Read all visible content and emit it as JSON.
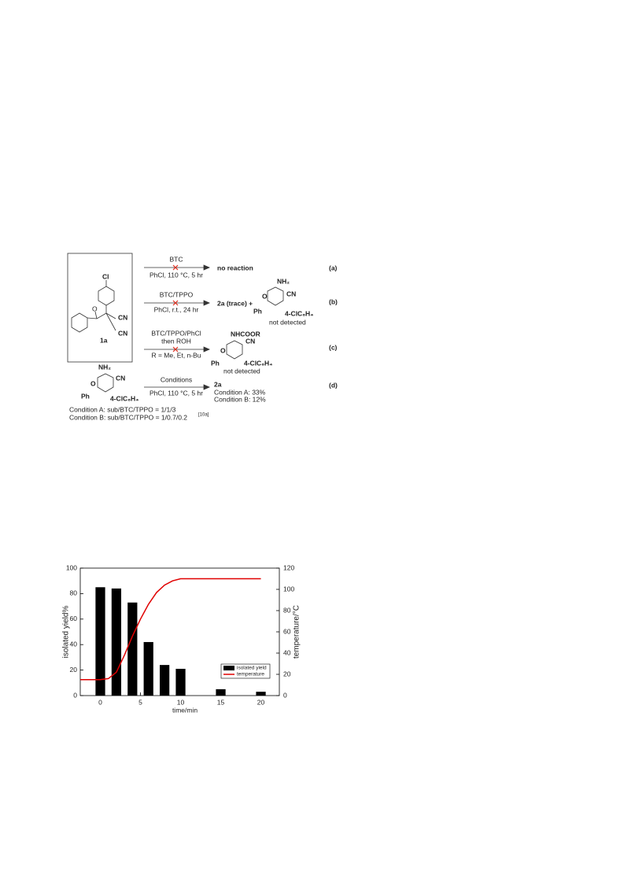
{
  "scheme": {
    "substrate": {
      "cl": "Cl",
      "o": "O",
      "cn1": "CN",
      "cn2": "CN",
      "label": "1a"
    },
    "a": {
      "reagent": "BTC",
      "conditions": "PhCl, 110 °C, 5 hr",
      "product": "no reaction",
      "tag": "(a)"
    },
    "b": {
      "reagent": "BTC/TPPO",
      "conditions": "PhCl, r.t., 24 hr",
      "product": "2a (trace) +",
      "amine": "NH₂",
      "o": "O",
      "cn": "CN",
      "ph": "Ph",
      "aryl": "4-ClC₆H₄",
      "note": "not detected",
      "tag": "(b)"
    },
    "c": {
      "reagent1": "BTC/TPPO/PhCl",
      "reagent2": "then ROH",
      "conditions": "R = Me, Et, n-Bu",
      "group": "NHCOOR",
      "o": "O",
      "cn": "CN",
      "ph": "Ph",
      "aryl": "4-ClC₆H₄",
      "note": "not detected",
      "tag": "(c)"
    },
    "d": {
      "amine": "NH₂",
      "o": "O",
      "cn": "CN",
      "ph": "Ph",
      "aryl": "4-ClC₆H₄",
      "reagent": "Conditions",
      "conditions": "PhCl, 110 °C, 5 hr",
      "product": "2a",
      "yieldA": "Condition A: 33%",
      "yieldB": "Condition B: 12%",
      "tag": "(d)",
      "conditionA": "Condition A: sub/BTC/TPPO = 1/1/3",
      "conditionB": "Condition B: sub/BTC/TPPO = 1/0.7/0.2",
      "ref": "[10a]"
    }
  },
  "chart_data": {
    "type": "bar",
    "xlabel": "time/min",
    "ylabel": "isolated yield%",
    "y2label": "temperature/°C",
    "x": [
      0,
      2,
      4,
      6,
      8,
      10,
      15,
      20
    ],
    "series": [
      {
        "name": "isolated yield",
        "color": "#000000",
        "values": [
          85,
          84,
          73,
          42,
          24,
          21,
          5,
          3
        ]
      },
      {
        "name": "temperature",
        "color": "#e00000",
        "axis": "y2",
        "type": "line",
        "x": [
          -2.5,
          0,
          1,
          2,
          3,
          4,
          5,
          6,
          7,
          8,
          9,
          10,
          11,
          20
        ],
        "values": [
          15,
          15,
          16,
          22,
          38,
          56,
          72,
          86,
          97,
          104,
          108,
          110,
          110,
          110
        ]
      }
    ],
    "xlim": [
      -2.5,
      22.3
    ],
    "xticks": [
      0,
      5,
      10,
      15,
      20
    ],
    "ylim": [
      0,
      100
    ],
    "yticks": [
      0,
      20,
      40,
      60,
      80,
      100
    ],
    "y2lim": [
      0,
      120
    ],
    "y2ticks": [
      0,
      20,
      40,
      60,
      80,
      100,
      120
    ],
    "legend": "lower right"
  }
}
